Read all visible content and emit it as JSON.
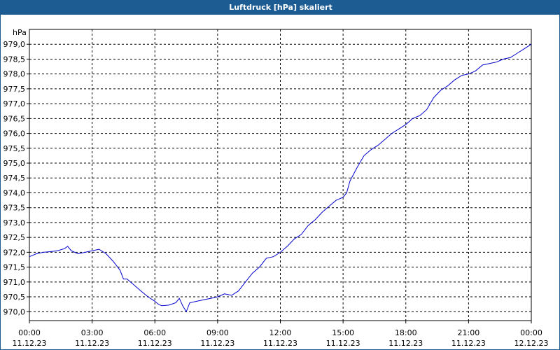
{
  "window": {
    "title": "Luftdruck [hPa] skaliert"
  },
  "chart_data": {
    "type": "line",
    "title": "Luftdruck [hPa] skaliert",
    "ylabel": "hPa",
    "xlabel": "",
    "ylim": [
      969.7,
      979.5
    ],
    "xlim": [
      0,
      24
    ],
    "grid": true,
    "line_color": "#0000cc",
    "y_ticks": [
      {
        "value": 970.0,
        "label": "970,0"
      },
      {
        "value": 970.5,
        "label": "970,5"
      },
      {
        "value": 971.0,
        "label": "971,0"
      },
      {
        "value": 971.5,
        "label": "971,5"
      },
      {
        "value": 972.0,
        "label": "972,0"
      },
      {
        "value": 972.5,
        "label": "972,5"
      },
      {
        "value": 973.0,
        "label": "973,0"
      },
      {
        "value": 973.5,
        "label": "973,5"
      },
      {
        "value": 974.0,
        "label": "974,0"
      },
      {
        "value": 974.5,
        "label": "974,5"
      },
      {
        "value": 975.0,
        "label": "975,0"
      },
      {
        "value": 975.5,
        "label": "975,5"
      },
      {
        "value": 976.0,
        "label": "976,0"
      },
      {
        "value": 976.5,
        "label": "976,5"
      },
      {
        "value": 977.0,
        "label": "977,0"
      },
      {
        "value": 977.5,
        "label": "977,5"
      },
      {
        "value": 978.0,
        "label": "978,0"
      },
      {
        "value": 978.5,
        "label": "978,5"
      },
      {
        "value": 979.0,
        "label": "979,0"
      }
    ],
    "x_ticks": [
      {
        "value": 0,
        "time": "00:00",
        "date": "11.12.23"
      },
      {
        "value": 3,
        "time": "03:00",
        "date": "11.12.23"
      },
      {
        "value": 6,
        "time": "06:00",
        "date": "11.12.23"
      },
      {
        "value": 9,
        "time": "09:00",
        "date": "11.12.23"
      },
      {
        "value": 12,
        "time": "12:00",
        "date": "11.12.23"
      },
      {
        "value": 15,
        "time": "15:00",
        "date": "11.12.23"
      },
      {
        "value": 18,
        "time": "18:00",
        "date": "11.12.23"
      },
      {
        "value": 21,
        "time": "21:00",
        "date": "11.12.23"
      },
      {
        "value": 24,
        "time": "00:00",
        "date": "12.12.23"
      }
    ],
    "series": [
      {
        "x": [
          0,
          0.33,
          0.67,
          1.0,
          1.33,
          1.67,
          1.83,
          2.0,
          2.33,
          2.67,
          3.0,
          3.33,
          3.67,
          4.0,
          4.33,
          4.5,
          4.67,
          5.0,
          5.33,
          5.67,
          6.0,
          6.17,
          6.33,
          6.67,
          7.0,
          7.17,
          7.33,
          7.5,
          7.67,
          8.0,
          8.33,
          8.67,
          9.0,
          9.33,
          9.67,
          10.0,
          10.33,
          10.67,
          11.0,
          11.33,
          11.67,
          12.0,
          12.33,
          12.67,
          13.0,
          13.33,
          13.67,
          14.0,
          14.33,
          14.67,
          15.0,
          15.17,
          15.33,
          15.67,
          16.0,
          16.33,
          16.67,
          17.0,
          17.33,
          17.67,
          18.0,
          18.33,
          18.67,
          19.0,
          19.33,
          19.67,
          20.0,
          20.33,
          20.67,
          21.0,
          21.33,
          21.67,
          22.0,
          22.33,
          22.67,
          23.0,
          23.33,
          23.67,
          24.0
        ],
        "y": [
          971.85,
          971.95,
          972.0,
          972.02,
          972.05,
          972.12,
          972.2,
          972.05,
          971.95,
          972.0,
          972.05,
          972.1,
          971.95,
          971.7,
          971.4,
          971.1,
          971.1,
          970.9,
          970.7,
          970.5,
          970.35,
          970.25,
          970.2,
          970.22,
          970.3,
          970.45,
          970.2,
          970.0,
          970.3,
          970.35,
          970.4,
          970.45,
          970.5,
          970.6,
          970.55,
          970.7,
          971.0,
          971.3,
          971.5,
          971.8,
          971.85,
          972.0,
          972.2,
          972.45,
          972.6,
          972.9,
          973.1,
          973.35,
          973.55,
          973.75,
          973.85,
          974.0,
          974.4,
          974.85,
          975.25,
          975.45,
          975.6,
          975.8,
          976.0,
          976.15,
          976.3,
          976.5,
          976.6,
          976.8,
          977.2,
          977.45,
          977.6,
          977.8,
          977.95,
          978.0,
          978.1,
          978.3,
          978.35,
          978.4,
          978.5,
          978.55,
          978.7,
          978.85,
          979.0
        ]
      }
    ]
  }
}
